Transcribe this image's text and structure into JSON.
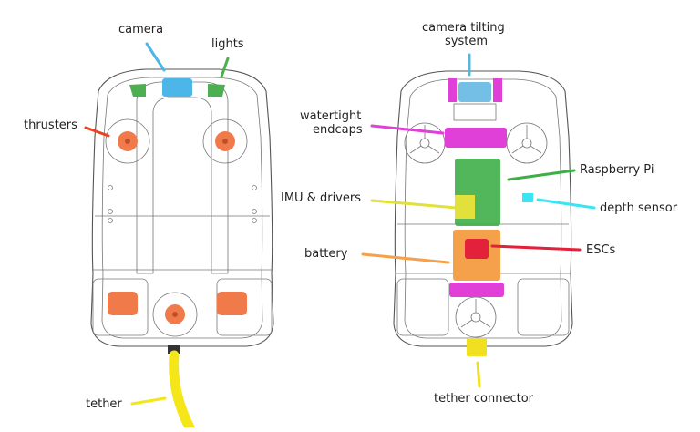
{
  "diagram": {
    "left_view": {
      "labels": {
        "camera": "camera",
        "lights": "lights",
        "thrusters": "thrusters",
        "tether": "tether"
      }
    },
    "right_view": {
      "labels": {
        "camera_tilting_line1": "camera tilting",
        "camera_tilting_line2": "system",
        "watertight_line1": "watertight",
        "watertight_line2": "endcaps",
        "raspberry_pi": "Raspberry Pi",
        "imu": "IMU & drivers",
        "depth_sensor": "depth sensor",
        "battery": "battery",
        "escs": "ESCs",
        "tether_connector": "tether connector"
      }
    },
    "colors": {
      "camera": "#4db6e8",
      "lights": "#4caf50",
      "thrusters": "#f07a4a",
      "thruster_leader": "#e8431e",
      "tether": "#f5e61a",
      "camera_tilt": "#5ab4e0",
      "endcaps": "#e040d8",
      "raspberry_pi": "#3fae49",
      "imu": "#e2e03a",
      "depth_sensor": "#3ae4f2",
      "battery": "#f5a04a",
      "escs": "#e3213a",
      "tether_connector": "#f1e020"
    }
  }
}
